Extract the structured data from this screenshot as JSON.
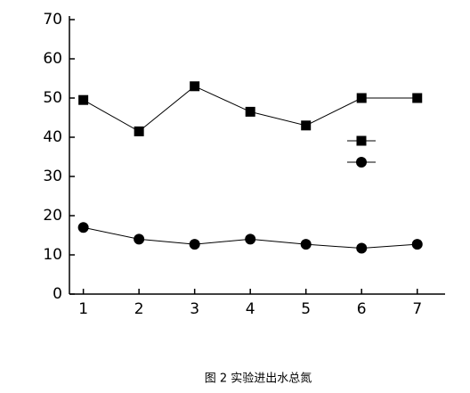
{
  "chart_data": {
    "type": "line",
    "caption": "图 2 实验进出水总氮",
    "x": [
      1,
      2,
      3,
      4,
      5,
      6,
      7
    ],
    "series": [
      {
        "color": "#000000",
        "marker": "square",
        "values": [
          49.5,
          41.5,
          53,
          46.5,
          43,
          50,
          50
        ]
      },
      {
        "color": "#000000",
        "marker": "circle",
        "values": [
          17,
          14,
          12.7,
          14,
          12.7,
          11.7,
          12.7
        ]
      }
    ],
    "xlim": [
      0.75,
      7.5
    ],
    "xticks": [
      1,
      2,
      3,
      4,
      5,
      6,
      7
    ],
    "ylim": [
      0,
      70
    ],
    "yticks": [
      0,
      10,
      20,
      30,
      40,
      50,
      60,
      70
    ],
    "grid": false
  }
}
